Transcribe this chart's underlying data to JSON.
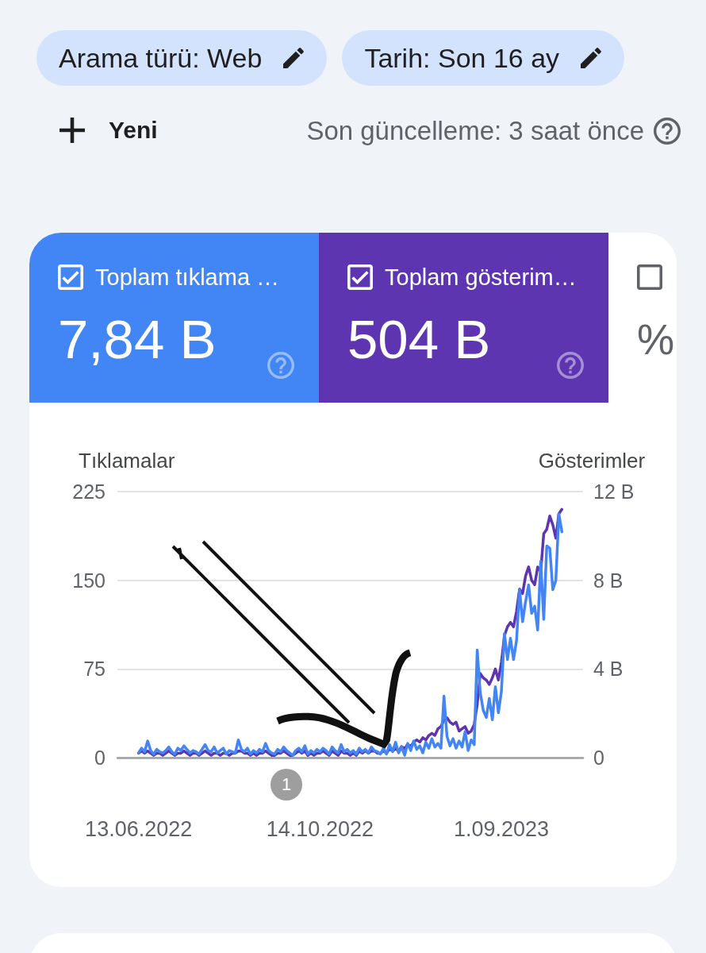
{
  "chart_data": [
    {
      "type": "other",
      "annotations": [
        "Arama türü: Web",
        "Tarih: Son 16 ay",
        "Yeni",
        "Son güncelleme: 3 saat önce"
      ],
      "categories": [
        "Toplam tıklama …",
        "Toplam gösterim…",
        null
      ],
      "value_labels": [
        "7,84 B",
        "504 B",
        "%"
      ],
      "colors": [
        "#4285f4",
        "#5e35b1",
        "#ffffff"
      ]
    },
    {
      "type": "line",
      "ylabel": "Tıklamalar",
      "y2label": "Gösterimler",
      "grid": "y",
      "annotations": [
        "1"
      ],
      "categories": [
        "13.06.2022",
        null,
        null,
        null,
        null,
        null,
        null,
        null,
        null,
        null,
        null,
        null,
        null,
        null,
        null,
        null,
        null,
        null,
        null,
        null,
        null,
        null,
        null,
        null,
        null,
        null,
        null,
        null,
        null,
        null,
        null,
        null,
        null,
        null,
        null,
        null,
        null,
        null,
        null,
        null,
        null,
        null,
        null,
        null,
        null,
        null,
        null,
        null,
        null,
        null,
        null,
        null,
        null,
        null,
        null,
        null,
        null,
        null,
        null,
        null,
        "14.10.2022",
        null,
        null,
        null,
        null,
        null,
        null,
        null,
        null,
        null,
        null,
        null,
        null,
        null,
        null,
        null,
        null,
        null,
        null,
        null,
        null,
        null,
        null,
        null,
        null,
        null,
        null,
        null,
        null,
        null,
        null,
        null,
        null,
        null,
        null,
        null,
        null,
        null,
        null,
        null,
        null,
        null,
        null,
        null,
        null,
        null,
        null,
        null,
        null,
        null,
        null,
        null,
        null,
        null,
        null,
        null,
        null,
        null,
        null,
        null,
        "1.09.2023",
        null,
        null,
        null,
        null,
        null,
        null,
        null,
        null,
        null,
        null,
        null,
        null,
        null,
        null,
        null,
        null,
        null,
        null,
        null,
        null
      ],
      "ylim": [
        0,
        225
      ],
      "yticks": [
        0,
        75,
        150,
        225
      ],
      "y2lim": [
        0,
        12
      ],
      "y2ticks": [
        0,
        {
          "value": 4,
          "label": "4 B"
        },
        {
          "value": 8,
          "label": "8 B"
        },
        {
          "value": 12,
          "label": "12 B"
        }
      ],
      "series": [
        {
          "color": "#4285f4",
          "values": [
            4,
            8,
            5,
            14,
            6,
            3,
            7,
            5,
            4,
            6,
            9,
            5,
            3,
            8,
            6,
            10,
            7,
            4,
            6,
            5,
            3,
            7,
            11,
            6,
            5,
            9,
            4,
            6,
            8,
            3,
            6,
            5,
            4,
            15,
            7,
            5,
            8,
            3,
            6,
            4,
            7,
            5,
            12,
            6,
            4,
            3,
            7,
            5,
            9,
            6,
            4,
            2,
            6,
            8,
            5,
            10,
            3,
            6,
            4,
            7,
            5,
            8,
            6,
            3,
            9,
            6,
            4,
            11,
            5,
            7,
            4,
            6,
            3,
            8,
            5,
            7,
            4,
            9,
            6,
            5,
            3,
            8,
            3,
            11,
            5,
            13,
            4,
            9,
            2,
            12,
            6,
            14,
            7,
            10,
            4,
            13,
            8,
            16,
            9,
            12,
            8,
            52,
            18,
            10,
            16,
            8,
            14,
            9,
            22,
            6,
            15,
            11,
            91,
            55,
            40,
            34,
            50,
            32,
            60,
            38,
            56,
            105,
            83,
            101,
            83,
            99,
            142,
            115,
            132,
            146,
            122,
            128,
            108,
            166,
            117,
            179,
            177,
            142,
            150,
            206,
            191
          ]
        },
        {
          "color": "#5e35b1",
          "axis": "y2",
          "values": [
            0.2,
            0.3,
            0.2,
            0.3,
            0.2,
            0.1,
            0.2,
            0.2,
            0.1,
            0.2,
            0.3,
            0.2,
            0.1,
            0.2,
            0.2,
            0.3,
            0.2,
            0.1,
            0.2,
            0.2,
            0.1,
            0.2,
            0.3,
            0.2,
            0.1,
            0.2,
            0.2,
            0.1,
            0.2,
            0.2,
            0.1,
            0.2,
            0.2,
            0.3,
            0.3,
            0.2,
            0.2,
            0.1,
            0.2,
            0.1,
            0.2,
            0.2,
            0.3,
            0.2,
            0.1,
            0.1,
            0.2,
            0.2,
            0.3,
            0.2,
            0.1,
            0.1,
            0.2,
            0.3,
            0.2,
            0.3,
            0.1,
            0.2,
            0.1,
            0.2,
            0.2,
            0.3,
            0.2,
            0.1,
            0.3,
            0.2,
            0.1,
            0.3,
            0.2,
            0.2,
            0.1,
            0.2,
            0.1,
            0.3,
            0.2,
            0.3,
            0.2,
            0.3,
            0.3,
            0.2,
            0.2,
            0.3,
            0.2,
            0.4,
            0.3,
            0.4,
            0.3,
            0.5,
            0.4,
            0.6,
            0.5,
            0.7,
            0.8,
            0.7,
            0.9,
            0.8,
            1.0,
            1.1,
            1.0,
            1.3,
            1.4,
            1.7,
            1.8,
            1.6,
            1.5,
            1.6,
            1.2,
            1.3,
            1.4,
            1.1,
            1.2,
            1.5,
            2.4,
            3.8,
            3.6,
            3.5,
            3.3,
            3.6,
            4.0,
            3.5,
            4.3,
            5.5,
            5.9,
            6.1,
            5.9,
            6.6,
            7.6,
            7.4,
            8.2,
            8.6,
            8.0,
            7.8,
            8.6,
            8.4,
            10.1,
            10.3,
            10.9,
            10.5,
            9.9,
            11.0,
            11.2
          ]
        }
      ]
    }
  ]
}
